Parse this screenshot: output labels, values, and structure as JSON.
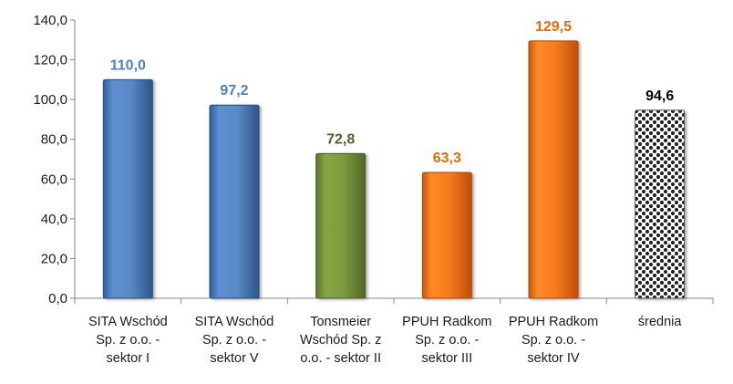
{
  "chart_data": {
    "type": "bar",
    "categories": [
      [
        "SITA Wschód",
        "Sp. z o.o. -",
        "sektor I"
      ],
      [
        "SITA Wschód",
        "Sp. z o.o. -",
        "sektor V"
      ],
      [
        "Tonsmeier",
        "Wschód Sp. z",
        "o.o. - sektor II"
      ],
      [
        "PPUH Radkom",
        "Sp. z o.o. -",
        "sektor III"
      ],
      [
        "PPUH Radkom",
        "Sp. z o.o. -",
        "sektor IV"
      ],
      [
        "średnia"
      ]
    ],
    "values": [
      110.0,
      97.2,
      72.8,
      63.3,
      129.5,
      94.6
    ],
    "data_labels": [
      "110,0",
      "97,2",
      "72,8",
      "63,3",
      "129,5",
      "94,6"
    ],
    "bar_colors": [
      "#4f81bd",
      "#4f81bd",
      "#77933c",
      "#f07318",
      "#f07318",
      "pattern-checker"
    ],
    "label_colors": [
      "#4f81bd",
      "#4f81bd",
      "#4f6228",
      "#e36c09",
      "#e36c09",
      "#000000"
    ],
    "ylim": [
      0,
      140
    ],
    "yticks": [
      0,
      20,
      40,
      60,
      80,
      100,
      120,
      140
    ],
    "ytick_labels": [
      "0,0",
      "20,0",
      "40,0",
      "60,0",
      "80,0",
      "100,0",
      "120,0",
      "140,0"
    ],
    "grid": false,
    "legend": "none",
    "title": "",
    "xlabel": "",
    "ylabel": ""
  }
}
